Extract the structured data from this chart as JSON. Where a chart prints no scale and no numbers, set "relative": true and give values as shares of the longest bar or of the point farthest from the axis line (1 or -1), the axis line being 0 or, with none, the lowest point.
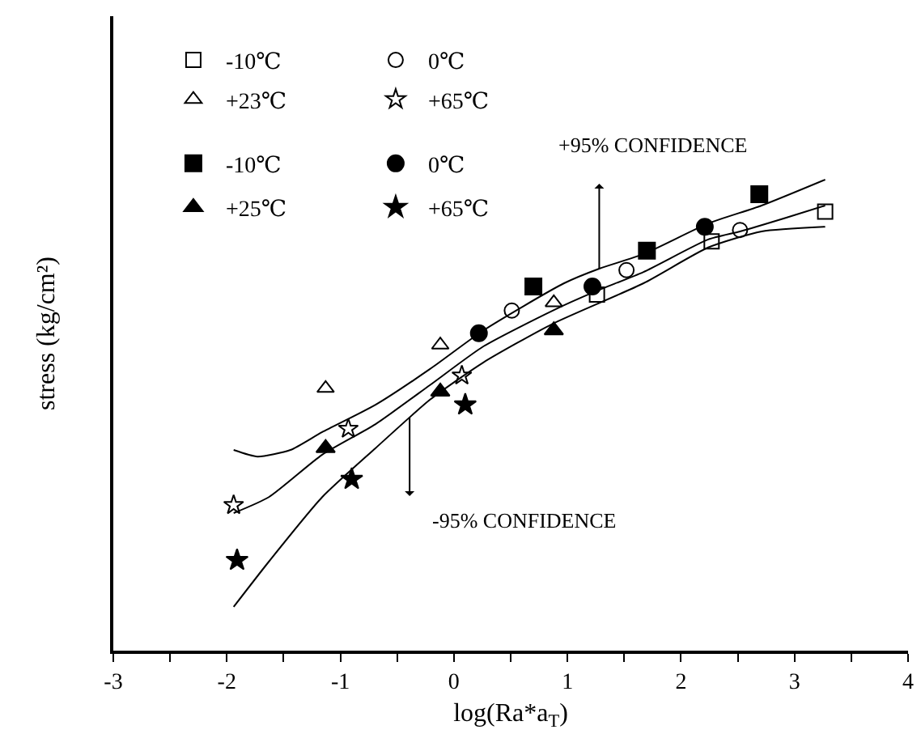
{
  "chart_data": {
    "type": "scatter",
    "relative": true,
    "xlabel": "log(Ra*a$_{T}$)",
    "ylabel": "stress (kg/cm²)",
    "xlim": [
      -3,
      4
    ],
    "xticks": [
      -3,
      {
        "value": -2.5,
        "label": null
      },
      -2,
      {
        "value": -1.5,
        "label": null
      },
      -1,
      {
        "value": -0.5,
        "label": null
      },
      0,
      {
        "value": 0.5,
        "label": null
      },
      1,
      {
        "value": 1.5,
        "label": null
      },
      2,
      {
        "value": 2.5,
        "label": null
      },
      3,
      {
        "value": 3.5,
        "label": null
      },
      4
    ],
    "grid": false,
    "legend": "top left",
    "series": [
      {
        "name": "-10℃",
        "color": "#000000",
        "marker": "square-open",
        "x": [
          1.26,
          2.27,
          3.27
        ],
        "values": [
          0.756,
          0.869,
          0.932
        ]
      },
      {
        "name": "0℃",
        "color": "#000000",
        "marker": "circle-open",
        "x": [
          0.51,
          1.52,
          2.52
        ],
        "values": [
          0.722,
          0.808,
          0.893
        ]
      },
      {
        "name": "+23℃",
        "color": "#000000",
        "marker": "triangle-open",
        "x": [
          -1.13,
          -0.12,
          0.88
        ],
        "values": [
          0.557,
          0.649,
          0.739
        ]
      },
      {
        "name": "+65℃",
        "color": "#000000",
        "marker": "star-open",
        "x": [
          -1.94,
          -0.93,
          0.07
        ],
        "values": [
          0.309,
          0.471,
          0.584
        ]
      },
      {
        "name": "-10℃",
        "color": "#000000",
        "marker": "square",
        "x": [
          0.7,
          1.7,
          2.69
        ],
        "values": [
          0.773,
          0.849,
          0.969
        ]
      },
      {
        "name": "0℃",
        "color": "#000000",
        "marker": "circle",
        "x": [
          0.22,
          1.22,
          2.21
        ],
        "values": [
          0.674,
          0.773,
          0.9
        ]
      },
      {
        "name": "+25℃",
        "color": "#000000",
        "marker": "triangle",
        "x": [
          -1.13,
          -0.12,
          0.88
        ],
        "values": [
          0.43,
          0.55,
          0.68
        ]
      },
      {
        "name": "+65℃",
        "color": "#000000",
        "marker": "star",
        "x": [
          -1.91,
          -0.9,
          0.1
        ],
        "values": [
          0.192,
          0.364,
          0.522
        ]
      },
      {
        "type": "line",
        "color": "#000000",
        "marker": "none",
        "line_style": "solid",
        "x": [
          -1.94,
          -1.73,
          -1.44,
          -1.16,
          -0.69,
          -0.21,
          0.26,
          0.97,
          1.28,
          1.67,
          2.24,
          2.71,
          3.27
        ],
        "values": [
          0.426,
          0.412,
          0.426,
          0.464,
          0.522,
          0.598,
          0.68,
          0.78,
          0.811,
          0.842,
          0.907,
          0.945,
          1.0
        ]
      },
      {
        "type": "line",
        "color": "#000000",
        "marker": "none",
        "line_style": "solid",
        "x": [
          -1.94,
          -1.63,
          -1.16,
          -0.69,
          -0.21,
          0.26,
          0.87,
          1.25,
          1.67,
          2.24,
          2.52,
          2.91,
          3.27
        ],
        "values": [
          0.292,
          0.326,
          0.416,
          0.481,
          0.564,
          0.646,
          0.722,
          0.763,
          0.804,
          0.873,
          0.89,
          0.918,
          0.945
        ]
      },
      {
        "type": "line",
        "color": "#000000",
        "marker": "none",
        "line_style": "solid",
        "x": [
          -1.94,
          -1.63,
          -1.16,
          -0.69,
          -0.21,
          0.26,
          0.87,
          1.67,
          2.24,
          2.71,
          3.27
        ],
        "values": [
          0.093,
          0.189,
          0.326,
          0.43,
          0.533,
          0.612,
          0.694,
          0.78,
          0.856,
          0.89,
          0.9
        ]
      }
    ],
    "annotations": [
      {
        "text": "+95% CONFIDENCE",
        "x": 1.28,
        "y": 0.811
      },
      {
        "text": "-95% CONFIDENCE",
        "x": -0.39,
        "y": 0.495
      }
    ]
  }
}
